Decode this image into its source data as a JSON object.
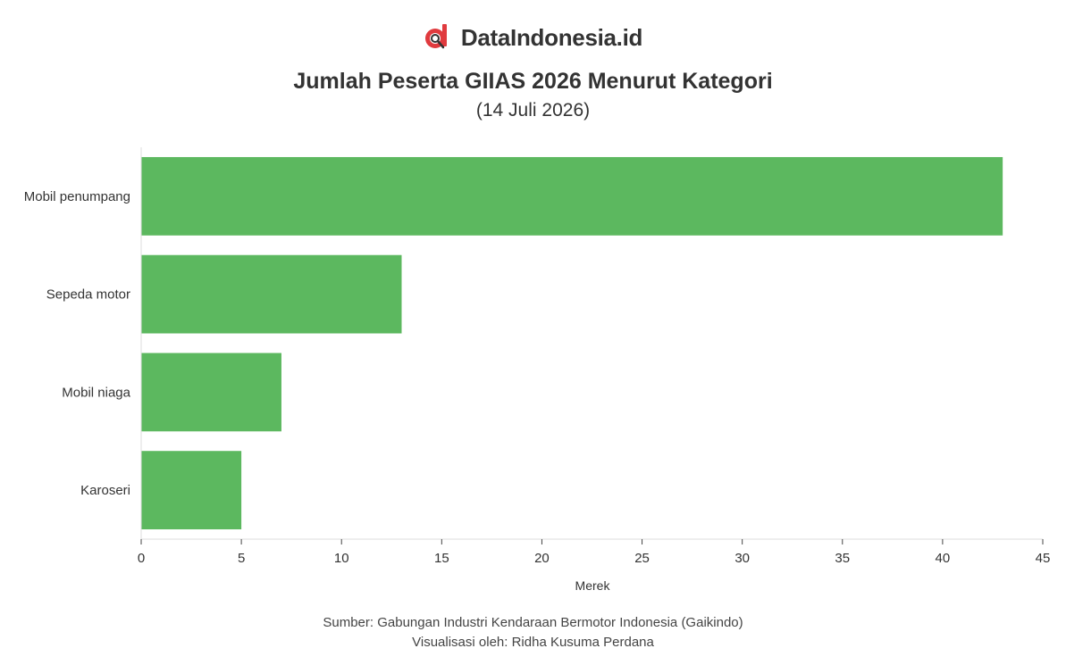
{
  "brand": {
    "name": "DataIndonesia.id",
    "logo_icon": "dataindonesia-logo-icon",
    "logo_color": "#e03a3e"
  },
  "header": {
    "title": "Jumlah Peserta GIIAS 2026 Menurut Kategori",
    "subtitle": "(14 Juli 2026)"
  },
  "chart_data": {
    "type": "bar",
    "orientation": "horizontal",
    "categories": [
      "Mobil penumpang",
      "Sepeda motor",
      "Mobil niaga",
      "Karoseri"
    ],
    "values": [
      43,
      13,
      7,
      5
    ],
    "xlabel": "Merek",
    "ylabel": "",
    "xlim": [
      0,
      45
    ],
    "xticks": [
      0,
      5,
      10,
      15,
      20,
      25,
      30,
      35,
      40,
      45
    ],
    "bar_color": "#5cb85f",
    "grid": false
  },
  "footer": {
    "source": "Sumber: Gabungan Industri Kendaraan Bermotor Indonesia (Gaikindo)",
    "credit": "Visualisasi oleh: Ridha Kusuma Perdana"
  }
}
